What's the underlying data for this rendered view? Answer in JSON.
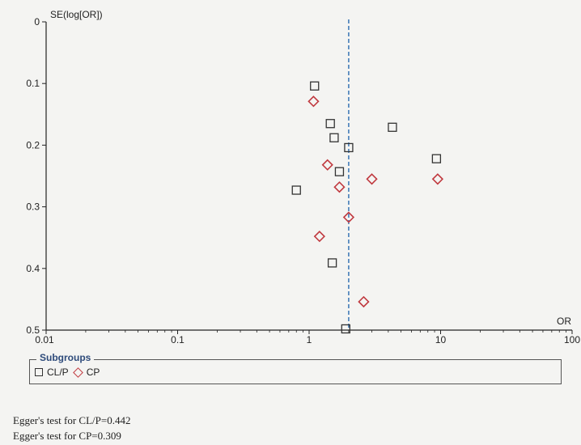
{
  "chart_data": {
    "type": "scatter",
    "title": "",
    "xlabel": "OR",
    "ylabel": "SE(log[OR])",
    "xscale": "log",
    "xlim": [
      0.01,
      100
    ],
    "ylim": [
      0,
      0.5
    ],
    "y_inverted": true,
    "x_ticks": [
      "0.01",
      "0.1",
      "1",
      "10",
      "100"
    ],
    "y_ticks": [
      "0",
      "0.1",
      "0.2",
      "0.3",
      "0.4",
      "0.5"
    ],
    "reference_line": {
      "x": 2.0,
      "style": "dashed",
      "color": "#2b6cb0"
    },
    "series": [
      {
        "name": "CL/P",
        "marker": "square",
        "color": "#333333",
        "points": [
          {
            "x": 1.1,
            "y": 0.104
          },
          {
            "x": 1.45,
            "y": 0.165
          },
          {
            "x": 1.55,
            "y": 0.188
          },
          {
            "x": 2.0,
            "y": 0.204
          },
          {
            "x": 4.3,
            "y": 0.171
          },
          {
            "x": 9.3,
            "y": 0.222
          },
          {
            "x": 1.7,
            "y": 0.243
          },
          {
            "x": 0.8,
            "y": 0.273
          },
          {
            "x": 1.5,
            "y": 0.391
          },
          {
            "x": 1.9,
            "y": 0.498
          }
        ]
      },
      {
        "name": "CP",
        "marker": "diamond",
        "color": "#c0393f",
        "points": [
          {
            "x": 1.08,
            "y": 0.129
          },
          {
            "x": 1.38,
            "y": 0.232
          },
          {
            "x": 1.7,
            "y": 0.268
          },
          {
            "x": 3.0,
            "y": 0.255
          },
          {
            "x": 9.5,
            "y": 0.255
          },
          {
            "x": 2.0,
            "y": 0.317
          },
          {
            "x": 1.2,
            "y": 0.348
          },
          {
            "x": 2.6,
            "y": 0.454
          }
        ]
      }
    ]
  },
  "legend": {
    "title": "Subgroups",
    "items": [
      {
        "label": "CL/P",
        "marker": "square"
      },
      {
        "label": "CP",
        "marker": "diamond"
      }
    ]
  },
  "annotations": [
    "Egger's test for CL/P=0.442",
    "Egger's test for CP=0.309"
  ]
}
